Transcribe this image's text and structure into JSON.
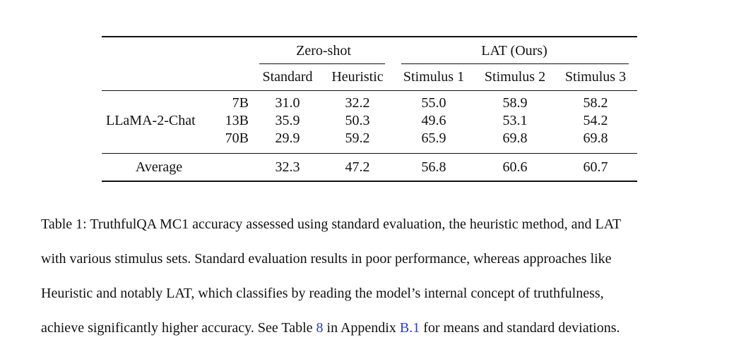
{
  "table": {
    "group_headers": {
      "zero_shot": "Zero-shot",
      "lat": "LAT (Ours)"
    },
    "column_headers": [
      "Standard",
      "Heuristic",
      "Stimulus 1",
      "Stimulus 2",
      "Stimulus 3"
    ],
    "model_name": "LLaMA-2-Chat",
    "rows": [
      {
        "size": "7B",
        "values": [
          "31.0",
          "32.2",
          "55.0",
          "58.9",
          "58.2"
        ]
      },
      {
        "size": "13B",
        "values": [
          "35.9",
          "50.3",
          "49.6",
          "53.1",
          "54.2"
        ]
      },
      {
        "size": "70B",
        "values": [
          "29.9",
          "59.2",
          "65.9",
          "69.8",
          "69.8"
        ]
      }
    ],
    "average": {
      "label": "Average",
      "values": [
        "32.3",
        "47.2",
        "56.8",
        "60.6",
        "60.7"
      ]
    }
  },
  "caption": {
    "line1": "Table 1: TruthfulQA MC1 accuracy assessed using standard evaluation, the heuristic method, and LAT",
    "line2": "with various stimulus sets. Standard evaluation results in poor performance, whereas approaches like",
    "line3": "Heuristic and notably LAT, which classifies by reading the model’s internal concept of truthfulness,",
    "line4_prefix": "achieve significantly higher accuracy. See Table ",
    "table_ref": "8",
    "line4_mid": " in Appendix ",
    "appendix_ref": "B.1",
    "line4_suffix": " for means and standard deviations."
  }
}
